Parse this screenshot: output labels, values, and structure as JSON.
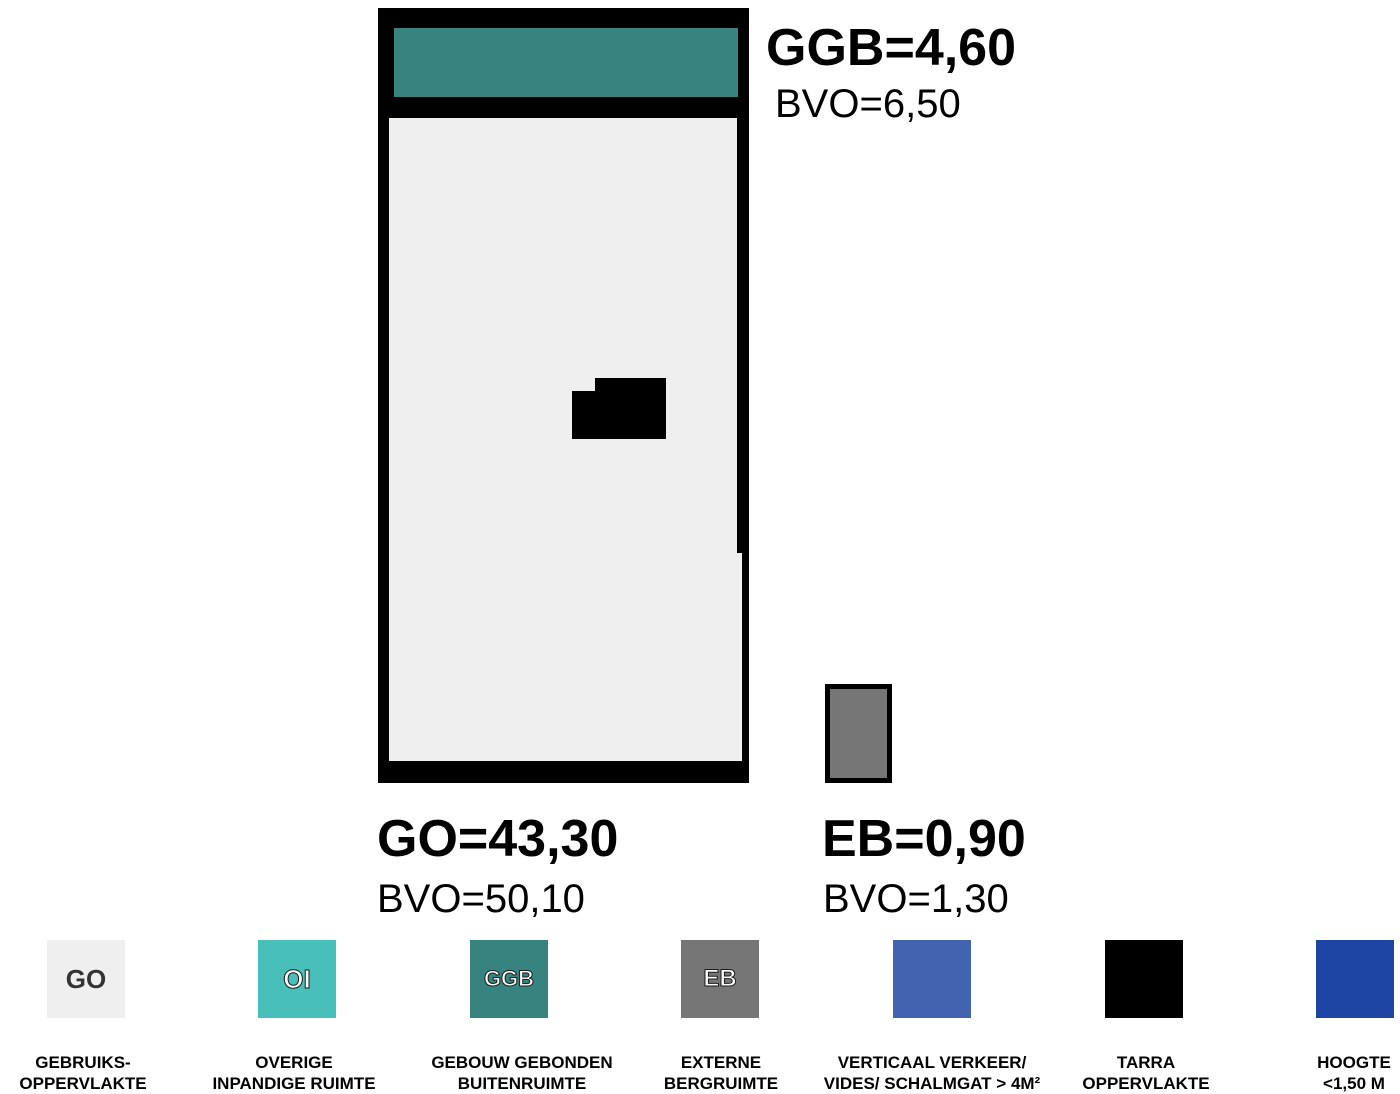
{
  "colors": {
    "go": "#efefef",
    "oi": "#48bfb8",
    "ggb": "#368380",
    "eb": "#767676",
    "verticaal_verkeer": "#4263b0",
    "tarra": "#000000",
    "hoogte": "#1e45a3",
    "outline": "#000000"
  },
  "labels": {
    "ggb": {
      "main": "GGB=4,60",
      "sub": "BVO=6,50"
    },
    "go": {
      "main": "GO=43,30",
      "sub": "BVO=50,10"
    },
    "eb": {
      "main": "EB=0,90",
      "sub": "BVO=1,30"
    }
  },
  "legend": [
    {
      "code": "GO",
      "color": "#efefef",
      "line1": "GEBRUIKS-",
      "line2": "OPPERVLAKTE"
    },
    {
      "code": "OI",
      "color": "#48bfb8",
      "line1": "OVERIGE",
      "line2": "INPANDIGE RUIMTE"
    },
    {
      "code": "GGB",
      "color": "#368380",
      "line1": "GEBOUW GEBONDEN",
      "line2": "BUITENRUIMTE"
    },
    {
      "code": "EB",
      "color": "#767676",
      "line1": "EXTERNE",
      "line2": "BERGRUIMTE"
    },
    {
      "code": "",
      "color": "#4263b0",
      "line1": "VERTICAAL VERKEER/",
      "line2": "VIDES/ SCHALMGAT > 4M²"
    },
    {
      "code": "",
      "color": "#000000",
      "line1": "TARRA",
      "line2": "OPPERVLAKTE"
    },
    {
      "code": "",
      "color": "#1e45a3",
      "line1": "HOOGTE",
      "line2": "<1,50 M"
    }
  ]
}
